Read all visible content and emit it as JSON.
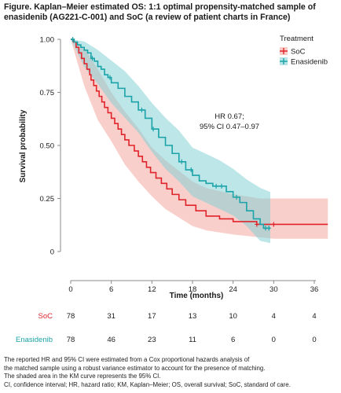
{
  "title_lines": [
    "Figure. Kaplan–Meier estimated OS: 1:1 optimal propensity-matched sample of",
    "enasidenib (AG221-C-001) and SoC (a review of patient charts in France)"
  ],
  "chart_data": {
    "type": "line",
    "subtype": "kaplan-meier",
    "xlabel": "Time (months)",
    "ylabel": "Survival probability",
    "xlim": [
      -2,
      38
    ],
    "ylim": [
      0,
      1.02
    ],
    "xticks": [
      0,
      6,
      12,
      18,
      24,
      30,
      36
    ],
    "yticks": [
      0,
      0.25,
      0.5,
      0.75,
      1.0
    ],
    "ytick_labels": [
      "0",
      "0.25",
      "0.50",
      "0.75",
      "1.00"
    ],
    "grid": false,
    "legend": {
      "title": "Treatment",
      "placement": "top-right"
    },
    "annotation": [
      "HR 0.67;",
      "95% CI 0.47–0.97"
    ],
    "series": [
      {
        "name": "SoC",
        "color": "#e0242b",
        "band_color": "#f4a8a0",
        "steps": [
          [
            0,
            1.0
          ],
          [
            0.4,
            0.987
          ],
          [
            0.8,
            0.962
          ],
          [
            1.2,
            0.936
          ],
          [
            1.6,
            0.91
          ],
          [
            2.0,
            0.885
          ],
          [
            2.4,
            0.859
          ],
          [
            2.8,
            0.833
          ],
          [
            3.0,
            0.808
          ],
          [
            3.4,
            0.782
          ],
          [
            3.8,
            0.756
          ],
          [
            4.2,
            0.731
          ],
          [
            4.6,
            0.705
          ],
          [
            5.0,
            0.679
          ],
          [
            5.5,
            0.654
          ],
          [
            6.0,
            0.628
          ],
          [
            6.5,
            0.603
          ],
          [
            7.0,
            0.577
          ],
          [
            7.5,
            0.551
          ],
          [
            8.0,
            0.526
          ],
          [
            8.6,
            0.5
          ],
          [
            9.4,
            0.474
          ],
          [
            10.0,
            0.449
          ],
          [
            10.6,
            0.423
          ],
          [
            11.2,
            0.397
          ],
          [
            11.8,
            0.372
          ],
          [
            12.6,
            0.346
          ],
          [
            13.4,
            0.321
          ],
          [
            14.2,
            0.295
          ],
          [
            15.0,
            0.269
          ],
          [
            16.0,
            0.244
          ],
          [
            17.0,
            0.218
          ],
          [
            18.5,
            0.192
          ],
          [
            20.0,
            0.167
          ],
          [
            22.0,
            0.154
          ],
          [
            24.0,
            0.141
          ],
          [
            27.5,
            0.128
          ],
          [
            30.0,
            0.128
          ],
          [
            38.0,
            0.128
          ]
        ],
        "ci_lower": [
          [
            0,
            1.0
          ],
          [
            2,
            0.78
          ],
          [
            4,
            0.62
          ],
          [
            6,
            0.52
          ],
          [
            8,
            0.41
          ],
          [
            10,
            0.33
          ],
          [
            12,
            0.26
          ],
          [
            14,
            0.2
          ],
          [
            16,
            0.16
          ],
          [
            18,
            0.12
          ],
          [
            20,
            0.1
          ],
          [
            24,
            0.08
          ],
          [
            30,
            0.06
          ],
          [
            38,
            0.06
          ]
        ],
        "ci_upper": [
          [
            0,
            1.0
          ],
          [
            2,
            0.96
          ],
          [
            4,
            0.86
          ],
          [
            6,
            0.75
          ],
          [
            8,
            0.66
          ],
          [
            10,
            0.58
          ],
          [
            12,
            0.49
          ],
          [
            14,
            0.43
          ],
          [
            16,
            0.38
          ],
          [
            18,
            0.33
          ],
          [
            20,
            0.3
          ],
          [
            24,
            0.27
          ],
          [
            28,
            0.25
          ],
          [
            38,
            0.25
          ]
        ],
        "censor_times": [
          27.5,
          30.0
        ]
      },
      {
        "name": "Enasidenib",
        "color": "#1aa3a8",
        "band_color": "#86d2d6",
        "steps": [
          [
            0,
            1.0
          ],
          [
            0.5,
            0.987
          ],
          [
            1.0,
            0.974
          ],
          [
            1.5,
            0.962
          ],
          [
            2.0,
            0.949
          ],
          [
            2.5,
            0.936
          ],
          [
            3.0,
            0.91
          ],
          [
            3.5,
            0.897
          ],
          [
            4.0,
            0.872
          ],
          [
            4.5,
            0.859
          ],
          [
            5.0,
            0.833
          ],
          [
            5.5,
            0.82
          ],
          [
            6.0,
            0.795
          ],
          [
            7.0,
            0.769
          ],
          [
            8.0,
            0.731
          ],
          [
            9.0,
            0.705
          ],
          [
            10.0,
            0.667
          ],
          [
            11.0,
            0.628
          ],
          [
            12.0,
            0.577
          ],
          [
            13.0,
            0.538
          ],
          [
            14.0,
            0.5
          ],
          [
            15.0,
            0.462
          ],
          [
            16.0,
            0.423
          ],
          [
            17.0,
            0.385
          ],
          [
            18.0,
            0.359
          ],
          [
            19.0,
            0.333
          ],
          [
            20.0,
            0.321
          ],
          [
            21.0,
            0.308
          ],
          [
            23.0,
            0.282
          ],
          [
            24.0,
            0.256
          ],
          [
            25.0,
            0.231
          ],
          [
            26.0,
            0.192
          ],
          [
            27.0,
            0.154
          ],
          [
            28.0,
            0.128
          ],
          [
            28.5,
            0.11
          ],
          [
            29.5,
            0.11
          ]
        ],
        "ci_lower": [
          [
            0,
            1.0
          ],
          [
            2,
            0.87
          ],
          [
            4,
            0.79
          ],
          [
            6,
            0.7
          ],
          [
            8,
            0.63
          ],
          [
            10,
            0.56
          ],
          [
            12,
            0.47
          ],
          [
            14,
            0.39
          ],
          [
            16,
            0.33
          ],
          [
            18,
            0.26
          ],
          [
            20,
            0.23
          ],
          [
            22,
            0.2
          ],
          [
            24,
            0.17
          ],
          [
            26,
            0.12
          ],
          [
            28,
            0.05
          ],
          [
            29.5,
            0.04
          ]
        ],
        "ci_upper": [
          [
            0,
            1.0
          ],
          [
            2,
            0.99
          ],
          [
            4,
            0.95
          ],
          [
            6,
            0.9
          ],
          [
            8,
            0.85
          ],
          [
            10,
            0.78
          ],
          [
            12,
            0.7
          ],
          [
            14,
            0.63
          ],
          [
            16,
            0.57
          ],
          [
            18,
            0.49
          ],
          [
            20,
            0.46
          ],
          [
            22,
            0.43
          ],
          [
            24,
            0.39
          ],
          [
            26,
            0.34
          ],
          [
            28,
            0.3
          ],
          [
            29.5,
            0.28
          ]
        ],
        "censor_times": [
          0.3,
          3.2,
          5.8,
          10.5,
          12.2,
          16.4,
          17.8,
          21.5,
          22.3,
          24.5,
          28.8,
          29.3
        ]
      }
    ],
    "risk_table": {
      "times": [
        0,
        6,
        12,
        18,
        24,
        30,
        36
      ],
      "rows": [
        {
          "name": "SoC",
          "values": [
            "78",
            "31",
            "17",
            "13",
            "10",
            "4",
            "4"
          ]
        },
        {
          "name": "Enasidenib",
          "values": [
            "78",
            "46",
            "23",
            "11",
            "6",
            "0",
            "0"
          ]
        }
      ]
    }
  },
  "footnote_lines": [
    "The reported HR and 95% CI were estimated from a Cox proportional hazards analysis of",
    "the matched sample using a robust variance estimator to account for the presence of matching.",
    "The shaded area in the KM curve represents the 95% CI.",
    "CI, confidence interval; HR, hazard ratio; KM, Kaplan–Meier; OS, overall survival; SoC, standard of care."
  ]
}
